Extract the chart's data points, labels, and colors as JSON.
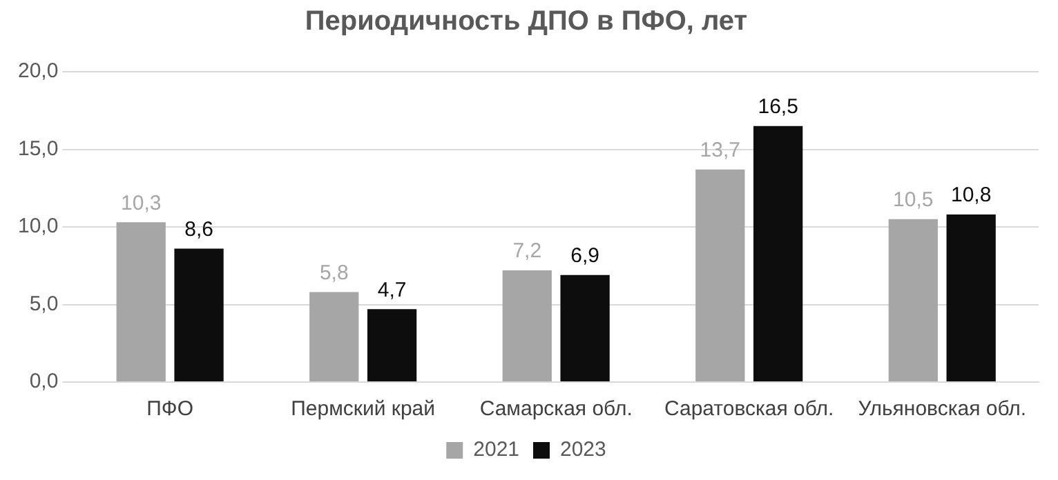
{
  "chart_data": {
    "type": "bar",
    "title": "Периодичность ДПО в ПФО, лет",
    "categories": [
      "ПФО",
      "Пермский край",
      "Самарская обл.",
      "Саратовская обл.",
      "Ульяновская обл."
    ],
    "series": [
      {
        "name": "2021",
        "color": "#a6a6a6",
        "values": [
          10.3,
          5.8,
          7.2,
          13.7,
          10.5
        ],
        "value_labels": [
          "10,3",
          "5,8",
          "7,2",
          "13,7",
          "10,5"
        ]
      },
      {
        "name": "2023",
        "color": "#0d0d0d",
        "values": [
          8.6,
          4.7,
          6.9,
          16.5,
          10.8
        ],
        "value_labels": [
          "8,6",
          "4,7",
          "6,9",
          "16,5",
          "10,8"
        ]
      }
    ],
    "ylim": [
      0,
      20
    ],
    "yticks": [
      {
        "value": 0,
        "label": "0,0"
      },
      {
        "value": 5,
        "label": "5,0"
      },
      {
        "value": 10,
        "label": "10,0"
      },
      {
        "value": 15,
        "label": "15,0"
      },
      {
        "value": 20,
        "label": "20,0"
      }
    ],
    "grid": "y",
    "legend": "bottom"
  }
}
